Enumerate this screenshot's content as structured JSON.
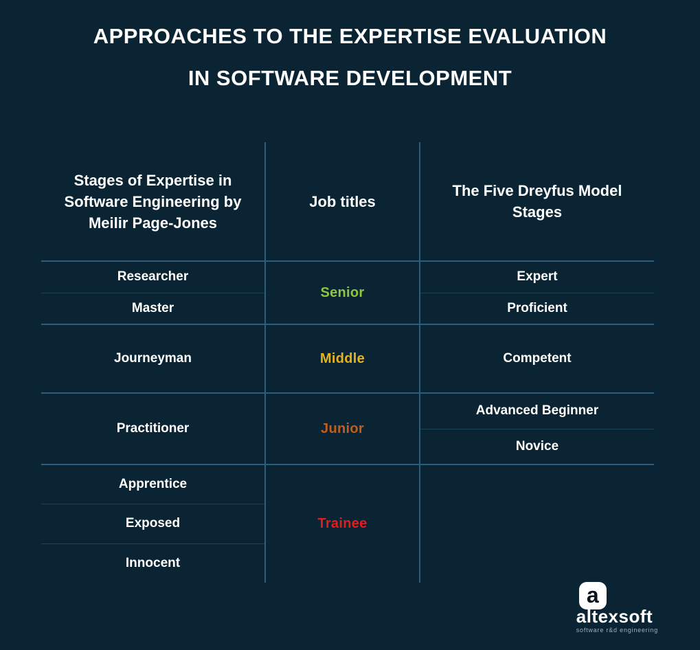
{
  "page": {
    "title_line1": "APPROACHES TO THE EXPERTISE EVALUATION",
    "title_line2": "IN SOFTWARE DEVELOPMENT",
    "background_color": "#0a2433",
    "line_color": "#2b5d7f"
  },
  "table": {
    "headers": [
      "Stages of Expertise in Software Engineering by Meilir Page-Jones",
      "Job titles",
      "The Five Dreyfus Model Stages"
    ],
    "groups": [
      {
        "job": {
          "label": "Senior",
          "color": "#8fc640"
        },
        "left": [
          "Researcher",
          "Master"
        ],
        "right": [
          "Expert",
          "Proficient"
        ]
      },
      {
        "job": {
          "label": "Middle",
          "color": "#e6b31e"
        },
        "left": [
          "Journeyman"
        ],
        "right": [
          "Competent"
        ]
      },
      {
        "job": {
          "label": "Junior",
          "color": "#bf5e1f"
        },
        "left": [
          "Practitioner"
        ],
        "right": [
          "Advanced Beginner",
          "Novice"
        ]
      },
      {
        "job": {
          "label": "Trainee",
          "color": "#e51c1c"
        },
        "left": [
          "Apprentice",
          "Exposed",
          "Innocent"
        ],
        "right": []
      }
    ]
  },
  "logo": {
    "icon": "altexsoft-a-icon",
    "icon_glyph": "a",
    "wordmark": "altexsoft",
    "tagline": "software r&d engineering"
  }
}
